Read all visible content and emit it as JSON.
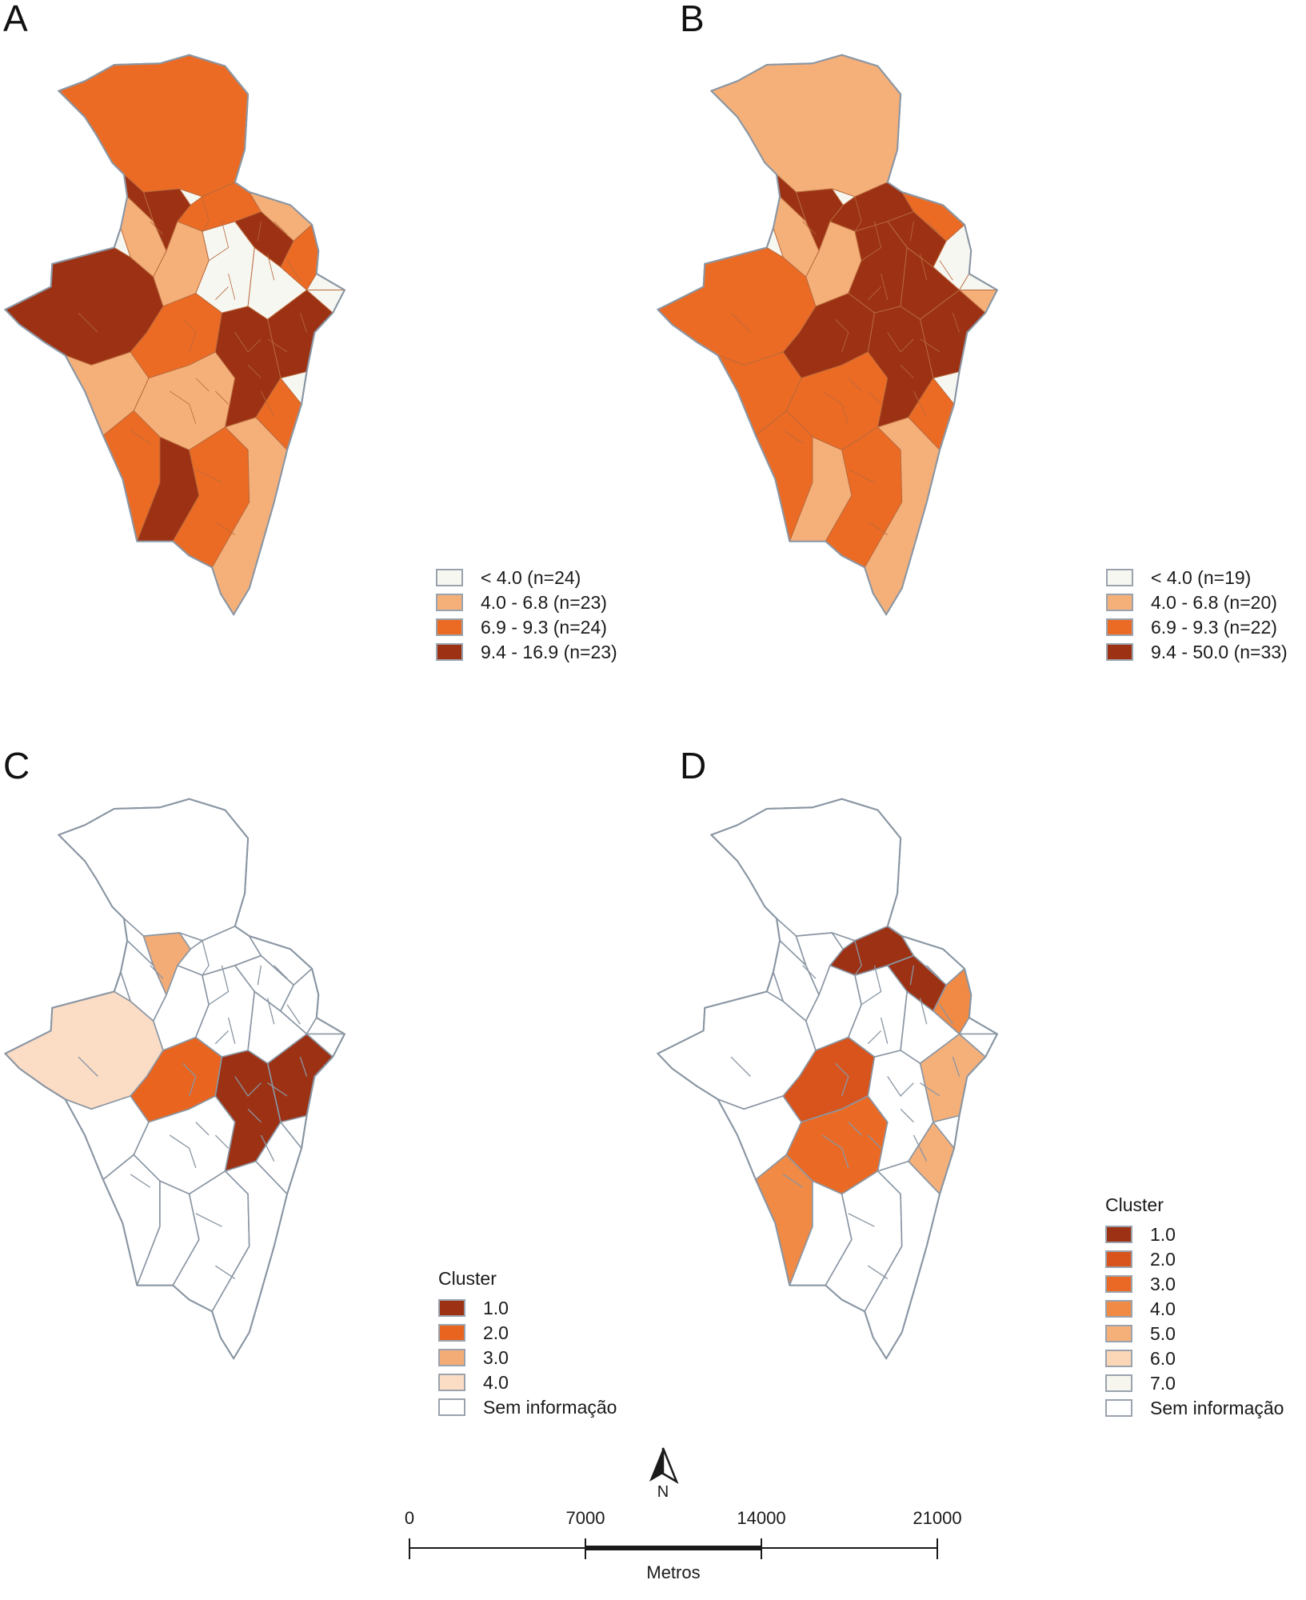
{
  "panels": {
    "a": {
      "letter": "A",
      "legend": [
        {
          "label": "< 4.0 (n=24)",
          "color": "#f7f7f2"
        },
        {
          "label": "4.0 - 6.8 (n=23)",
          "color": "#f5b07a"
        },
        {
          "label": "6.9 - 9.3 (n=24)",
          "color": "#ec6b24"
        },
        {
          "label": "9.4 - 16.9 (n=23)",
          "color": "#9c3114"
        }
      ]
    },
    "b": {
      "letter": "B",
      "legend": [
        {
          "label": "< 4.0 (n=19)",
          "color": "#f7f7f2"
        },
        {
          "label": "4.0 - 6.8 (n=20)",
          "color": "#f5b07a"
        },
        {
          "label": "6.9 - 9.3 (n=22)",
          "color": "#ec6b24"
        },
        {
          "label": "9.4 - 50.0 (n=33)",
          "color": "#9c3114"
        }
      ]
    },
    "c": {
      "letter": "C",
      "legend_title": "Cluster",
      "legend": [
        {
          "label": "1.0",
          "color": "#9c3114"
        },
        {
          "label": "2.0",
          "color": "#e8641f"
        },
        {
          "label": "3.0",
          "color": "#f4ac76"
        },
        {
          "label": "4.0",
          "color": "#fbdcc5"
        },
        {
          "label": "Sem informação",
          "color": "#ffffff"
        }
      ]
    },
    "d": {
      "letter": "D",
      "legend_title": "Cluster",
      "legend": [
        {
          "label": "1.0",
          "color": "#9c3114"
        },
        {
          "label": "2.0",
          "color": "#d9531c"
        },
        {
          "label": "3.0",
          "color": "#ea6a25"
        },
        {
          "label": "4.0",
          "color": "#f08a45"
        },
        {
          "label": "5.0",
          "color": "#f5b07a"
        },
        {
          "label": "6.0",
          "color": "#fbd7b8"
        },
        {
          "label": "7.0",
          "color": "#f6f6ef"
        },
        {
          "label": "Sem informação",
          "color": "#ffffff"
        }
      ]
    }
  },
  "north_arrow": {
    "label": "N"
  },
  "scale_bar": {
    "ticks": [
      "0",
      "7000",
      "14000",
      "21000"
    ],
    "unit": "Metros"
  },
  "colors": {
    "outline": "#8a96a3",
    "no_data": "#ffffff",
    "low": "#f7f7f2",
    "light": "#f5b07a",
    "medium": "#ec6b24",
    "dark": "#9c3114"
  }
}
